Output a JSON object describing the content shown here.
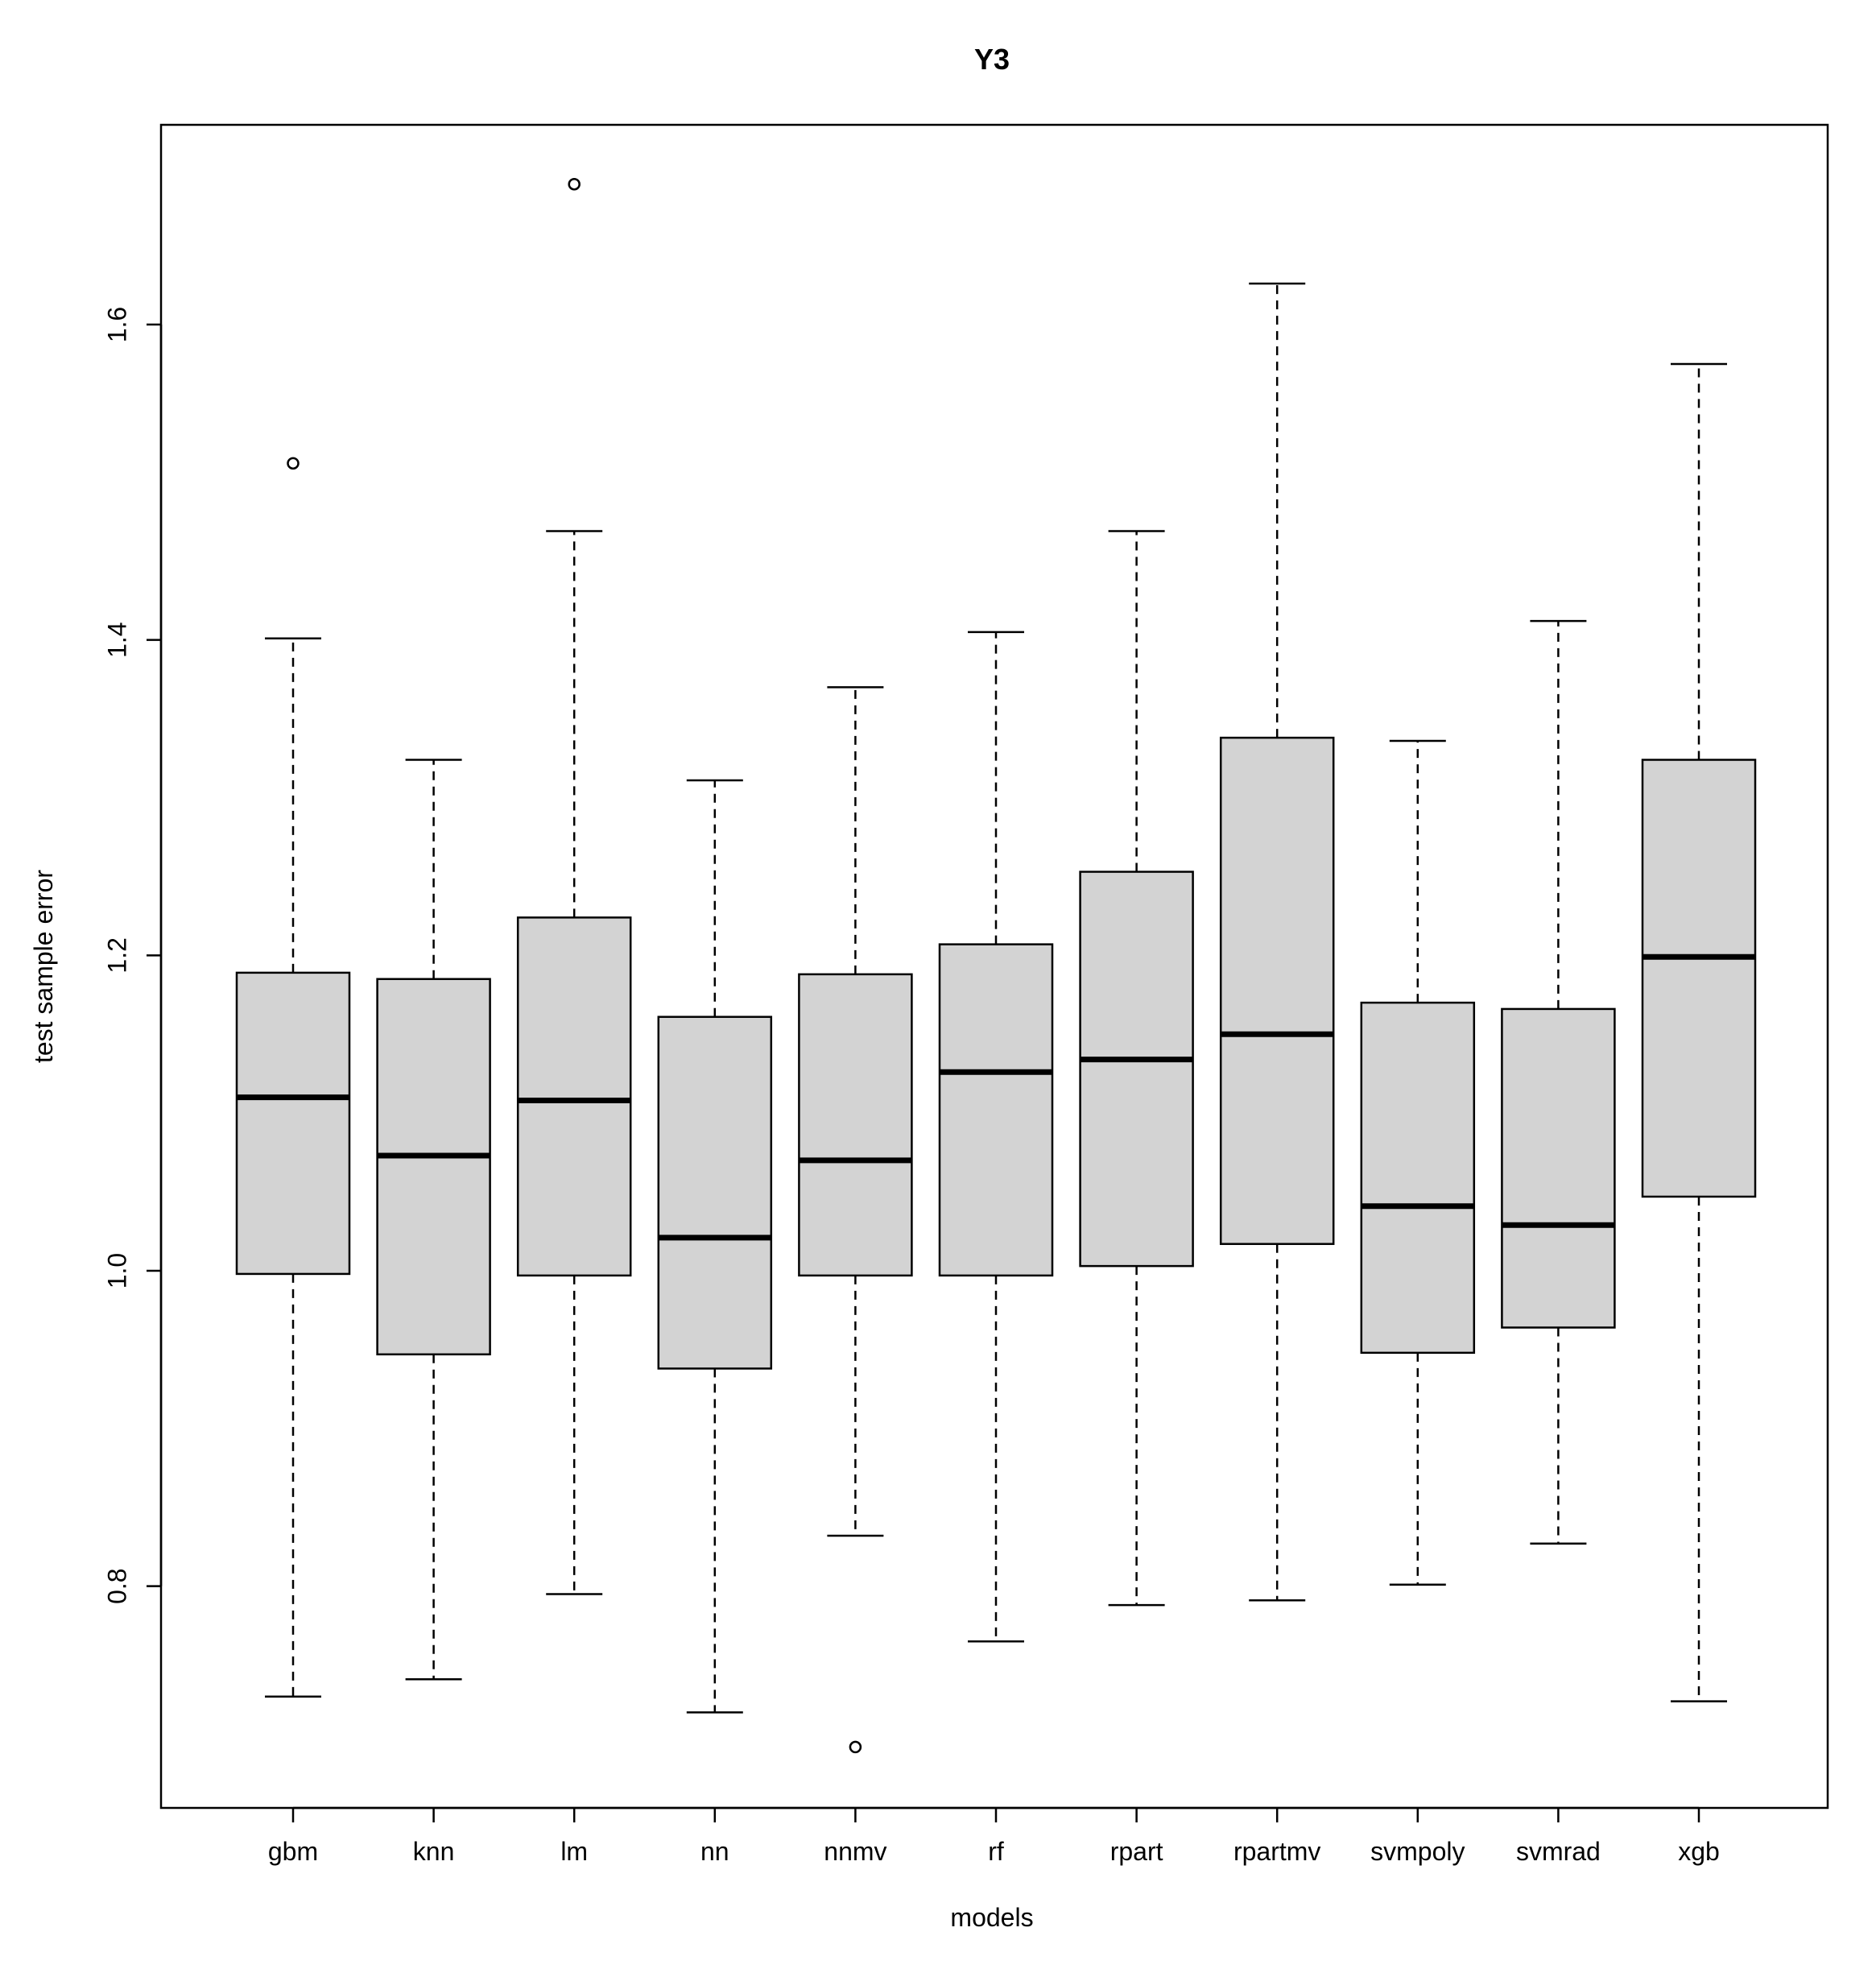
{
  "chart_data": {
    "type": "boxplot",
    "title": "Y3",
    "xlabel": "models",
    "ylabel": "test sample error",
    "ylim": [
      0.69,
      1.76
    ],
    "yticks": [
      0.8,
      1.0,
      1.2,
      1.4,
      1.6
    ],
    "ytick_labels": [
      "0.8",
      "1.0",
      "1.2",
      "1.4",
      "1.6"
    ],
    "grid": false,
    "box_fill": "#d3d3d3",
    "categories": [
      "gbm",
      "knn",
      "lm",
      "nn",
      "nnmv",
      "rf",
      "rpart",
      "rpartmv",
      "svmpoly",
      "svmrad",
      "xgb"
    ],
    "boxes": [
      {
        "name": "gbm",
        "whisker_low": 0.73,
        "q1": 0.998,
        "median": 1.11,
        "q3": 1.189,
        "whisker_high": 1.401,
        "outliers": [
          1.512
        ]
      },
      {
        "name": "knn",
        "whisker_low": 0.741,
        "q1": 0.947,
        "median": 1.073,
        "q3": 1.185,
        "whisker_high": 1.324,
        "outliers": []
      },
      {
        "name": "lm",
        "whisker_low": 0.795,
        "q1": 0.997,
        "median": 1.108,
        "q3": 1.224,
        "whisker_high": 1.469,
        "outliers": [
          1.689
        ]
      },
      {
        "name": "nn",
        "whisker_low": 0.72,
        "q1": 0.938,
        "median": 1.021,
        "q3": 1.161,
        "whisker_high": 1.311,
        "outliers": []
      },
      {
        "name": "nnmv",
        "whisker_low": 0.832,
        "q1": 0.997,
        "median": 1.07,
        "q3": 1.188,
        "whisker_high": 1.37,
        "outliers": [
          0.698
        ]
      },
      {
        "name": "rf",
        "whisker_low": 0.765,
        "q1": 0.997,
        "median": 1.126,
        "q3": 1.207,
        "whisker_high": 1.405,
        "outliers": []
      },
      {
        "name": "rpart",
        "whisker_low": 0.788,
        "q1": 1.003,
        "median": 1.134,
        "q3": 1.253,
        "whisker_high": 1.469,
        "outliers": []
      },
      {
        "name": "rpartmv",
        "whisker_low": 0.791,
        "q1": 1.017,
        "median": 1.15,
        "q3": 1.338,
        "whisker_high": 1.626,
        "outliers": []
      },
      {
        "name": "svmpoly",
        "whisker_low": 0.801,
        "q1": 0.948,
        "median": 1.041,
        "q3": 1.17,
        "whisker_high": 1.336,
        "outliers": []
      },
      {
        "name": "svmrad",
        "whisker_low": 0.827,
        "q1": 0.964,
        "median": 1.029,
        "q3": 1.166,
        "whisker_high": 1.412,
        "outliers": []
      },
      {
        "name": "xgb",
        "whisker_low": 0.727,
        "q1": 1.047,
        "median": 1.199,
        "q3": 1.324,
        "whisker_high": 1.575,
        "outliers": []
      }
    ]
  }
}
